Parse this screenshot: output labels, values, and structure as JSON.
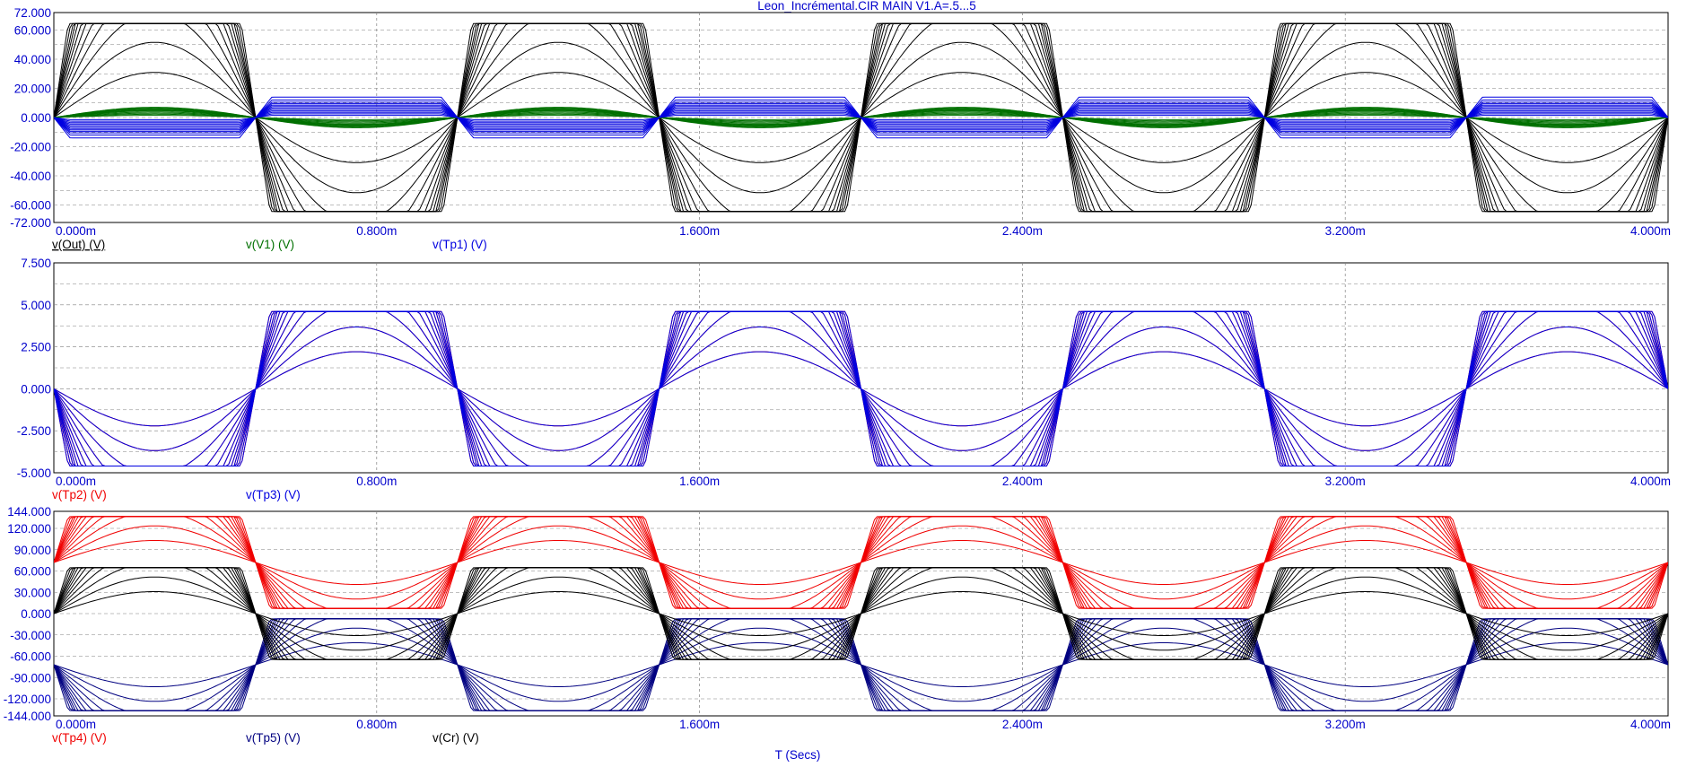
{
  "title": "Leon_Incrémental.CIR MAIN V1.A=.5...5",
  "x_axis_label": "T (Secs)",
  "colors": {
    "axis_text": "#0000cc",
    "black": "#000000",
    "green": "#007000",
    "blue": "#0000e0",
    "red": "#f00000",
    "navy": "#000080",
    "grid": "#808080"
  },
  "chart_data": [
    {
      "type": "line",
      "xlim": [
        0,
        0.004
      ],
      "x_ticks": [
        "0.000m",
        "0.800m",
        "1.600m",
        "2.400m",
        "3.200m",
        "4.000m"
      ],
      "ylim": [
        -72,
        72
      ],
      "y_ticks": [
        "72.000",
        "60.000",
        "40.000",
        "20.000",
        "0.000",
        "-20.000",
        "-40.000",
        "-60.000",
        "-72.000"
      ],
      "traces": [
        {
          "label": "v(Out) (V)",
          "color_key": "black",
          "underlined": true,
          "amplitude": 64.5,
          "clip": 64.5,
          "phase_deg": 0,
          "offset": 0,
          "family": "clip-sweep"
        },
        {
          "label": "v(V1) (V)",
          "color_key": "green",
          "underlined": false,
          "amplitude": 5,
          "phase_deg": 0,
          "offset": 0,
          "family": "amplitude-sweep"
        },
        {
          "label": "v(Tp1) (V)",
          "color_key": "blue",
          "underlined": false,
          "amplitude": 10,
          "clip": 10,
          "phase_deg": 0,
          "offset": 0,
          "family": "blue-tp1"
        }
      ]
    },
    {
      "type": "line",
      "xlim": [
        0,
        0.004
      ],
      "x_ticks": [
        "0.000m",
        "0.800m",
        "1.600m",
        "2.400m",
        "3.200m",
        "4.000m"
      ],
      "ylim": [
        -5,
        7.5
      ],
      "y_ticks": [
        "7.500",
        "5.000",
        "2.500",
        "0.000",
        "-2.500",
        "-5.000"
      ],
      "traces": [
        {
          "label": "v(Tp2) (V)",
          "color_key": "red",
          "underlined": false,
          "amplitude": -4.6,
          "clip": 4.6,
          "phase_deg": 0,
          "offset": 0,
          "family": "clip-sweep"
        },
        {
          "label": "v(Tp3) (V)",
          "color_key": "blue",
          "underlined": false,
          "amplitude": -4.6,
          "clip": 4.6,
          "phase_deg": 0,
          "offset": 0,
          "family": "clip-sweep-shift"
        }
      ]
    },
    {
      "type": "line",
      "xlim": [
        0,
        0.004
      ],
      "x_ticks": [
        "0.000m",
        "0.800m",
        "1.600m",
        "2.400m",
        "3.200m",
        "4.000m"
      ],
      "ylim": [
        -144,
        144
      ],
      "y_ticks": [
        "144.000",
        "120.000",
        "90.000",
        "60.000",
        "30.000",
        "0.000",
        "-30.000",
        "-60.000",
        "-90.000",
        "-120.000",
        "-144.000"
      ],
      "traces": [
        {
          "label": "v(Tp4) (V)",
          "color_key": "red",
          "underlined": false,
          "amplitude": 64.5,
          "clip": 64.5,
          "phase_deg": 0,
          "offset": 72,
          "family": "clip-sweep"
        },
        {
          "label": "v(Tp5) (V)",
          "color_key": "navy",
          "underlined": false,
          "amplitude": -64.5,
          "clip": 64.5,
          "phase_deg": 0,
          "offset": -72,
          "family": "clip-sweep"
        },
        {
          "label": "v(Cr) (V)",
          "color_key": "black",
          "underlined": false,
          "amplitude": 64.5,
          "clip": 64.5,
          "phase_deg": 0,
          "offset": 0,
          "family": "clip-sweep"
        }
      ]
    }
  ]
}
